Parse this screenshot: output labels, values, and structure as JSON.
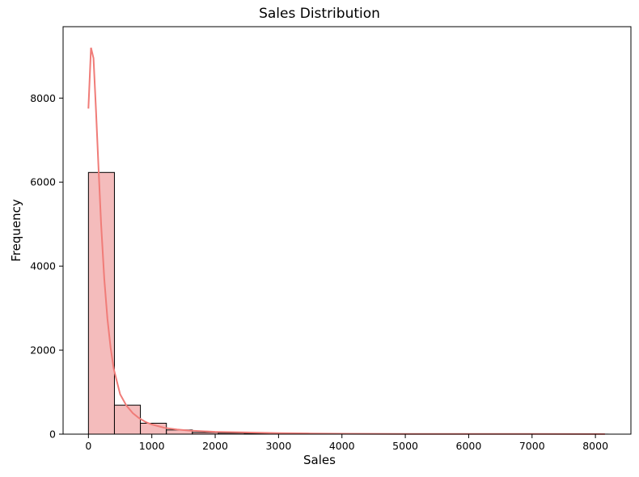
{
  "chart_data": {
    "type": "bar",
    "title": "Sales Distribution",
    "xlabel": "Sales",
    "ylabel": "Frequency",
    "xlim": [
      -400,
      8560
    ],
    "ylim": [
      0,
      9700
    ],
    "xticks": [
      0,
      1000,
      2000,
      3000,
      4000,
      5000,
      6000,
      7000,
      8000
    ],
    "yticks": [
      0,
      2000,
      4000,
      6000,
      8000
    ],
    "bins": [
      {
        "x0": 0,
        "x1": 410,
        "value": 6230
      },
      {
        "x0": 410,
        "x1": 820,
        "value": 690
      },
      {
        "x0": 820,
        "x1": 1230,
        "value": 260
      },
      {
        "x0": 1230,
        "x1": 1640,
        "value": 100
      },
      {
        "x0": 1640,
        "x1": 2050,
        "value": 40
      },
      {
        "x0": 2050,
        "x1": 2460,
        "value": 25
      },
      {
        "x0": 2460,
        "x1": 2870,
        "value": 20
      },
      {
        "x0": 2870,
        "x1": 3280,
        "value": 10
      },
      {
        "x0": 3280,
        "x1": 3690,
        "value": 8
      },
      {
        "x0": 3690,
        "x1": 4100,
        "value": 5
      },
      {
        "x0": 4100,
        "x1": 4510,
        "value": 3
      },
      {
        "x0": 4510,
        "x1": 4920,
        "value": 3
      },
      {
        "x0": 4920,
        "x1": 5330,
        "value": 2
      },
      {
        "x0": 5330,
        "x1": 5740,
        "value": 2
      },
      {
        "x0": 5740,
        "x1": 6150,
        "value": 2
      },
      {
        "x0": 6150,
        "x1": 6560,
        "value": 1
      },
      {
        "x0": 6560,
        "x1": 6970,
        "value": 1
      },
      {
        "x0": 6970,
        "x1": 7380,
        "value": 1
      },
      {
        "x0": 7380,
        "x1": 7790,
        "value": 1
      },
      {
        "x0": 7790,
        "x1": 8200,
        "value": 1
      }
    ],
    "kde": {
      "x": [
        0,
        40,
        80,
        120,
        160,
        200,
        250,
        300,
        350,
        400,
        500,
        600,
        700,
        800,
        900,
        1000,
        1200,
        1400,
        1600,
        1800,
        2000,
        2500,
        3000,
        3500,
        4000,
        5000,
        6000,
        7000,
        8150
      ],
      "y": [
        7750,
        9200,
        8950,
        7700,
        6300,
        5000,
        3700,
        2750,
        2050,
        1550,
        950,
        680,
        500,
        380,
        290,
        230,
        150,
        110,
        85,
        70,
        55,
        40,
        25,
        15,
        10,
        6,
        4,
        3,
        2
      ]
    },
    "colors": {
      "bar_fill": "#f4bcbc",
      "bar_edge": "#000000",
      "kde_line": "#f07c78"
    },
    "grid": false,
    "legend": "none"
  }
}
